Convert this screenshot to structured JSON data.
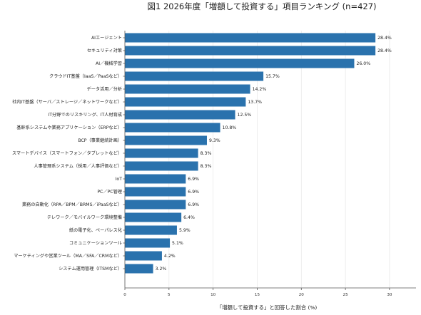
{
  "chart_data": {
    "type": "bar",
    "orientation": "horizontal",
    "title": "図1 2026年度「増額して投資する」項目ランキング (n=427)",
    "xlabel": "「増額して投資する」と回答した割合 (%)",
    "ylabel": "",
    "xlim": [
      0,
      33
    ],
    "xticks": [
      0,
      5,
      10,
      15,
      20,
      25,
      30
    ],
    "grid": "vertical",
    "legend": "none",
    "colors": {
      "bar": "#2a72ad",
      "grid": "#e6e6e6",
      "axis": "#555555"
    },
    "categories": [
      "AIエージェント",
      "セキュリティ対策",
      "AI／機械学習",
      "クラウドIT基盤（IaaS／PaaSなど）",
      "データ活用／分析",
      "社内IT基盤（サーバ／ストレージ／ネットワークなど）",
      "IT分野でのリスキリング、IT人材育成",
      "基幹系システムや業務アプリケーション（ERPなど）",
      "BCP（事業継続計画）",
      "スマートデバイス（スマートフォン／タブレットなど）",
      "人事管理系システム（採用／人事評価など）",
      "IoT",
      "PC／PC管理",
      "業務の自動化（RPA／BPM／BRMS／iPaaSなど）",
      "テレワーク／モバイルワーク環境整備",
      "紙の電子化、ペーパレス化",
      "コミュニケーションツール",
      "マーケティングや営業ツール（MA／SFA／CRMなど）",
      "システム運用管理（ITSMなど）"
    ],
    "values": [
      28.4,
      28.4,
      26.0,
      15.7,
      14.2,
      13.7,
      12.5,
      10.8,
      9.3,
      8.3,
      8.3,
      6.9,
      6.9,
      6.9,
      6.4,
      5.9,
      5.1,
      4.2,
      3.2
    ],
    "value_labels": [
      "28.4%",
      "28.4%",
      "26.0%",
      "15.7%",
      "14.2%",
      "13.7%",
      "12.5%",
      "10.8%",
      "9.3%",
      "8.3%",
      "8.3%",
      "6.9%",
      "6.9%",
      "6.9%",
      "6.4%",
      "5.9%",
      "5.1%",
      "4.2%",
      "3.2%"
    ]
  }
}
